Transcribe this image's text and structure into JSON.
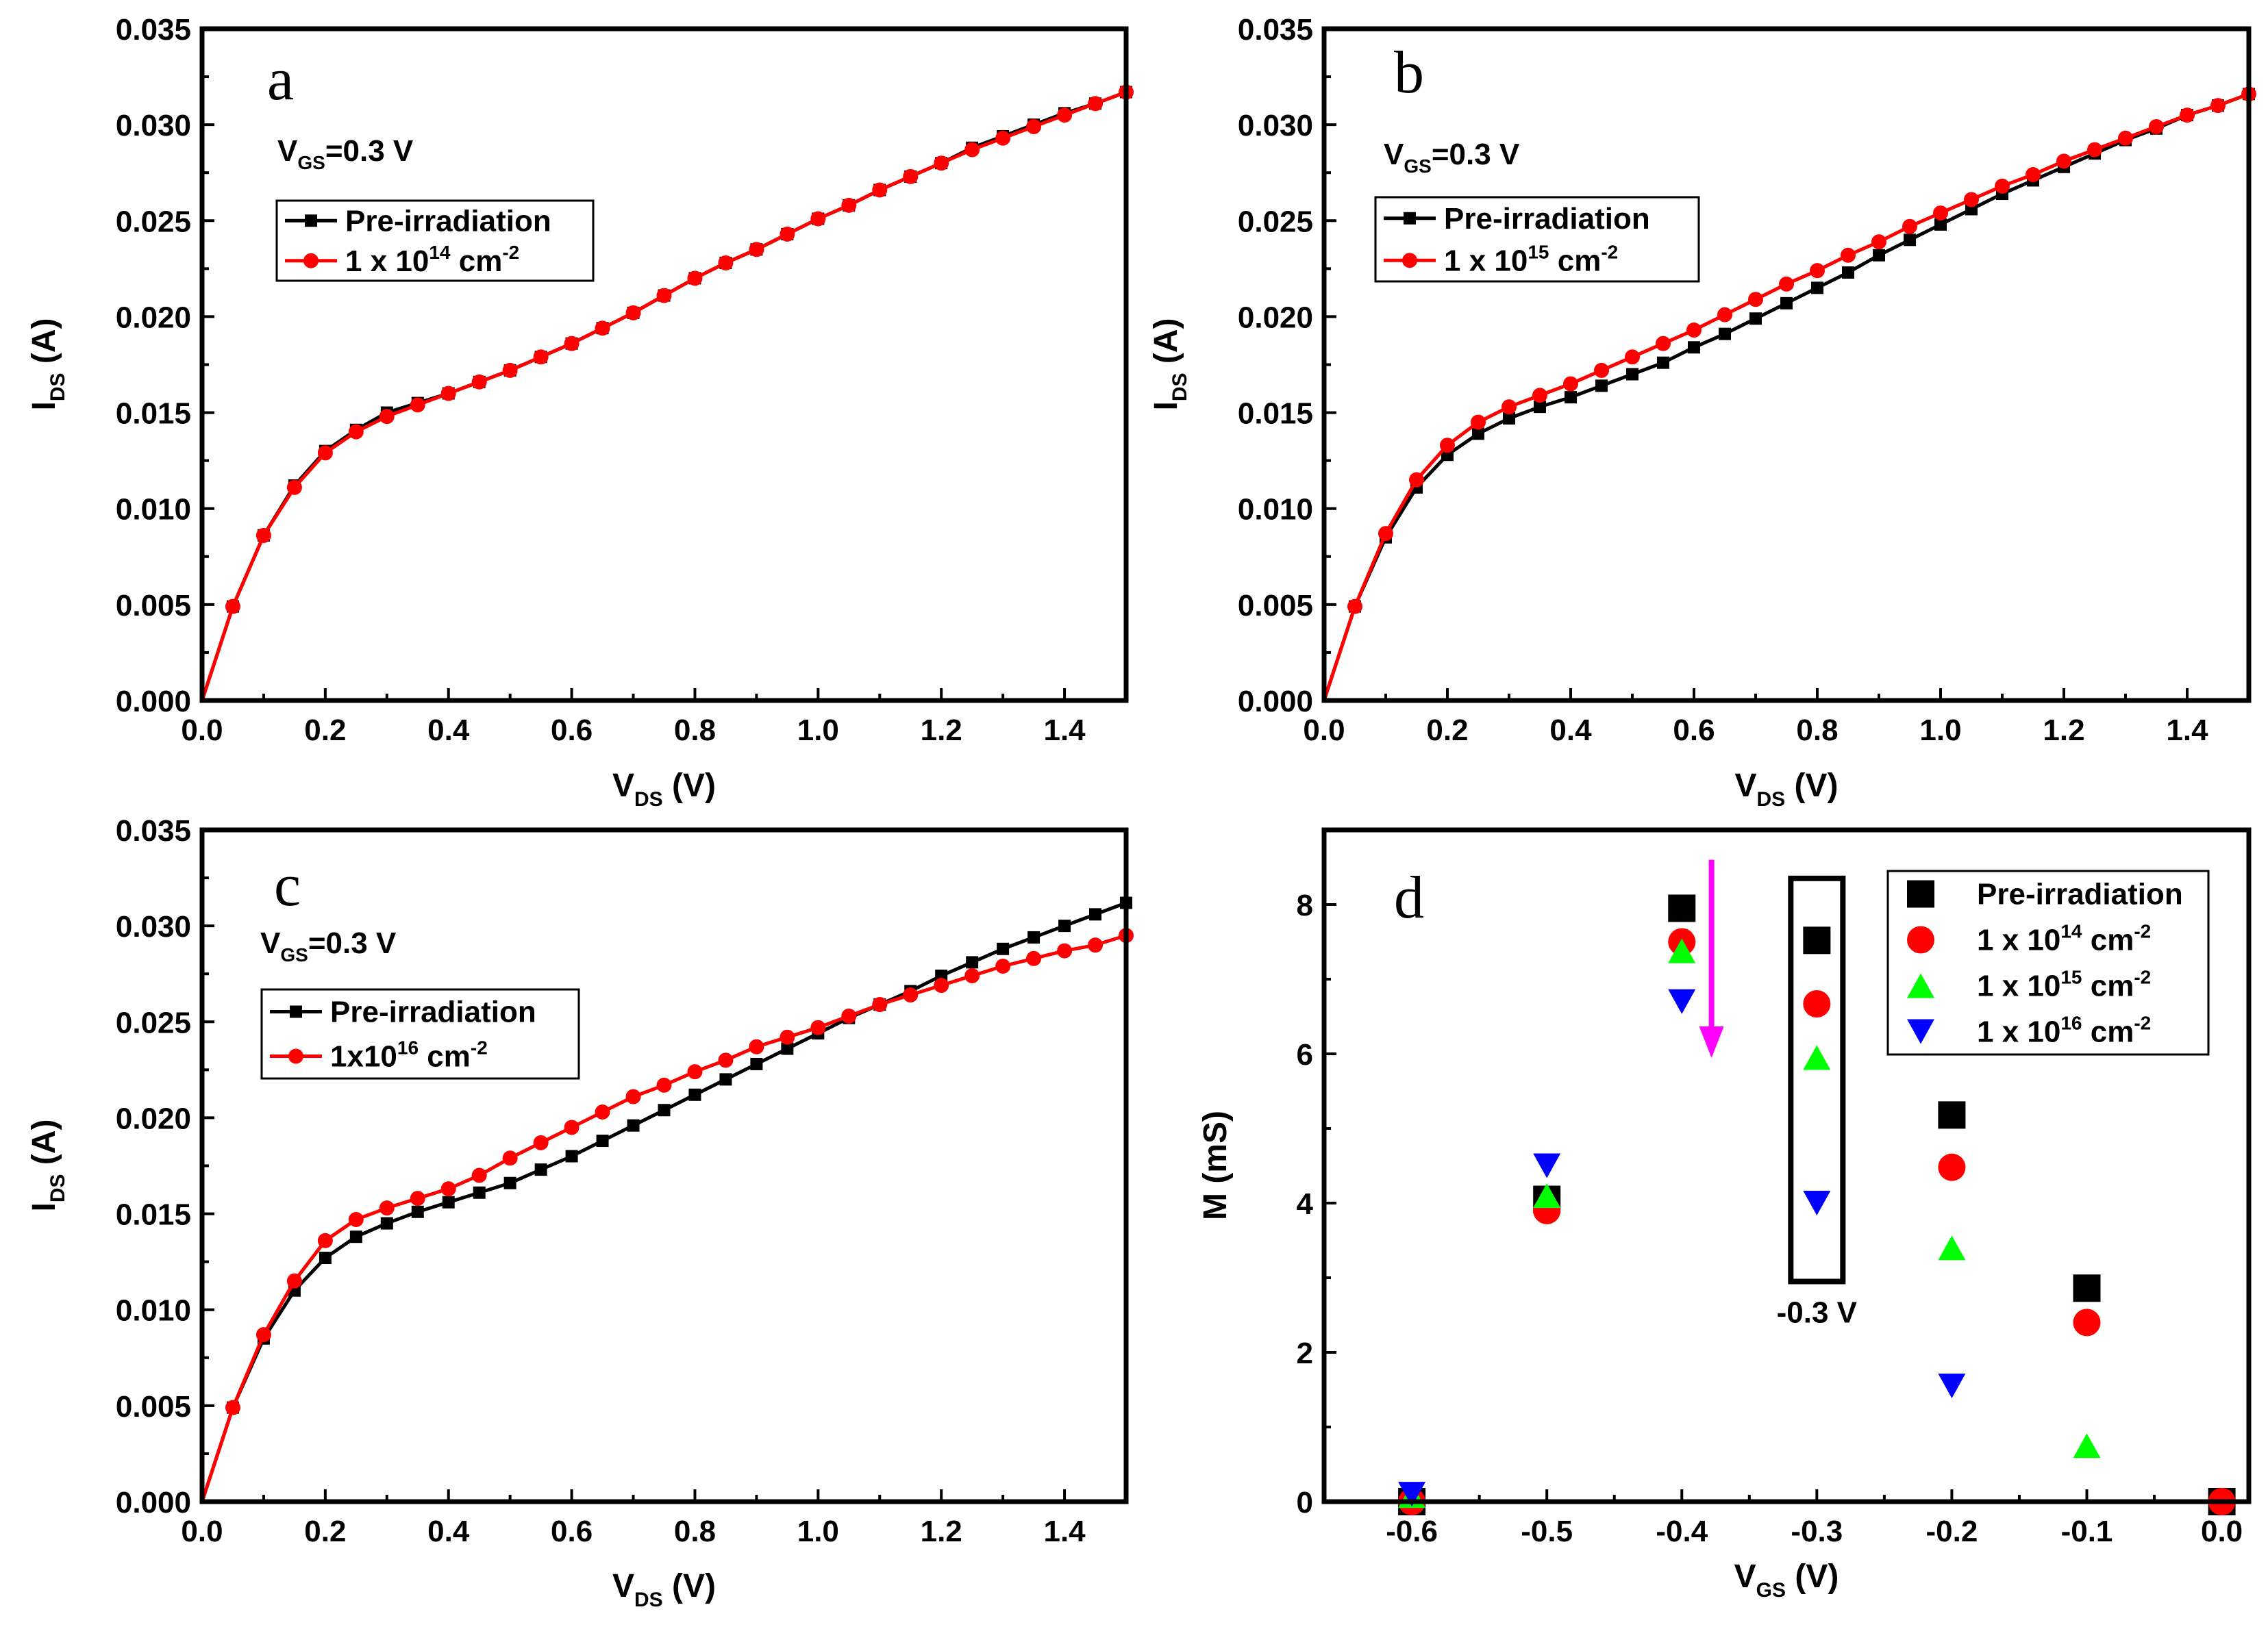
{
  "chart_data": [
    {
      "panel": "a",
      "type": "line",
      "annotation": {
        "main": "V",
        "sub": "GS",
        "rest": "=0.3 V"
      },
      "xlabel": {
        "main": "V",
        "sub": "DS",
        "rest": " (V)"
      },
      "ylabel": {
        "main": "I",
        "sub": "DS",
        "rest": " (A)"
      },
      "xlim": [
        0,
        1.5
      ],
      "ylim": [
        0,
        0.035
      ],
      "xticks": [
        "0.0",
        "0.2",
        "0.4",
        "0.6",
        "0.8",
        "1.0",
        "1.2",
        "1.4"
      ],
      "xtick_values": [
        0,
        0.2,
        0.4,
        0.6,
        0.8,
        1.0,
        1.2,
        1.4
      ],
      "yticks": [
        "0.000",
        "0.005",
        "0.010",
        "0.015",
        "0.020",
        "0.025",
        "0.030",
        "0.035"
      ],
      "ytick_values": [
        0,
        0.005,
        0.01,
        0.015,
        0.02,
        0.025,
        0.03,
        0.035
      ],
      "x": [
        0,
        0.05,
        0.1,
        0.15,
        0.2,
        0.25,
        0.3,
        0.35,
        0.4,
        0.45,
        0.5,
        0.55,
        0.6,
        0.65,
        0.7,
        0.75,
        0.8,
        0.85,
        0.9,
        0.95,
        1.0,
        1.05,
        1.1,
        1.15,
        1.2,
        1.25,
        1.3,
        1.35,
        1.4,
        1.45,
        1.5
      ],
      "series": [
        {
          "name": "Pre-irradiation",
          "color": "#000000",
          "marker": "square",
          "values": [
            0,
            0.0049,
            0.0086,
            0.0112,
            0.013,
            0.0141,
            0.015,
            0.0155,
            0.016,
            0.0166,
            0.0172,
            0.0179,
            0.0186,
            0.0194,
            0.0202,
            0.0211,
            0.022,
            0.0228,
            0.0235,
            0.0243,
            0.0251,
            0.0258,
            0.0266,
            0.0273,
            0.028,
            0.0288,
            0.0294,
            0.03,
            0.0306,
            0.0311,
            0.0317
          ]
        },
        {
          "name": "1 x 10",
          "sup": "14",
          "unit": " cm",
          "unit_sup": "-2",
          "color": "#ff0000",
          "marker": "circle",
          "values": [
            0,
            0.0049,
            0.0086,
            0.0111,
            0.0129,
            0.014,
            0.0148,
            0.0154,
            0.016,
            0.0166,
            0.0172,
            0.0179,
            0.0186,
            0.0194,
            0.0202,
            0.0211,
            0.022,
            0.0228,
            0.0235,
            0.0243,
            0.0251,
            0.0258,
            0.0266,
            0.0273,
            0.028,
            0.0287,
            0.0293,
            0.0299,
            0.0305,
            0.0311,
            0.0317
          ]
        }
      ]
    },
    {
      "panel": "b",
      "type": "line",
      "annotation": {
        "main": "V",
        "sub": "GS",
        "rest": "=0.3 V"
      },
      "xlabel": {
        "main": "V",
        "sub": "DS",
        "rest": " (V)"
      },
      "ylabel": {
        "main": "I",
        "sub": "DS",
        "rest": " (A)"
      },
      "xlim": [
        0,
        1.5
      ],
      "ylim": [
        0,
        0.035
      ],
      "xticks": [
        "0.0",
        "0.2",
        "0.4",
        "0.6",
        "0.8",
        "1.0",
        "1.2",
        "1.4"
      ],
      "xtick_values": [
        0,
        0.2,
        0.4,
        0.6,
        0.8,
        1.0,
        1.2,
        1.4
      ],
      "yticks": [
        "0.000",
        "0.005",
        "0.010",
        "0.015",
        "0.020",
        "0.025",
        "0.030",
        "0.035"
      ],
      "ytick_values": [
        0,
        0.005,
        0.01,
        0.015,
        0.02,
        0.025,
        0.03,
        0.035
      ],
      "x": [
        0,
        0.05,
        0.1,
        0.15,
        0.2,
        0.25,
        0.3,
        0.35,
        0.4,
        0.45,
        0.5,
        0.55,
        0.6,
        0.65,
        0.7,
        0.75,
        0.8,
        0.85,
        0.9,
        0.95,
        1.0,
        1.05,
        1.1,
        1.15,
        1.2,
        1.25,
        1.3,
        1.35,
        1.4,
        1.45,
        1.5
      ],
      "series": [
        {
          "name": "Pre-irradiation",
          "color": "#000000",
          "marker": "square",
          "values": [
            0,
            0.0049,
            0.0085,
            0.0111,
            0.0128,
            0.0139,
            0.0147,
            0.0153,
            0.0158,
            0.0164,
            0.017,
            0.0176,
            0.0184,
            0.0191,
            0.0199,
            0.0207,
            0.0215,
            0.0223,
            0.0232,
            0.024,
            0.0248,
            0.0256,
            0.0264,
            0.0271,
            0.0278,
            0.0285,
            0.0292,
            0.0298,
            0.0305,
            0.031,
            0.0316
          ]
        },
        {
          "name": "1 x 10",
          "sup": "15",
          "unit": " cm",
          "unit_sup": "-2",
          "color": "#ff0000",
          "marker": "circle",
          "values": [
            0,
            0.0049,
            0.0087,
            0.0115,
            0.0133,
            0.0145,
            0.0153,
            0.0159,
            0.0165,
            0.0172,
            0.0179,
            0.0186,
            0.0193,
            0.0201,
            0.0209,
            0.0217,
            0.0224,
            0.0232,
            0.0239,
            0.0247,
            0.0254,
            0.0261,
            0.0268,
            0.0274,
            0.0281,
            0.0287,
            0.0293,
            0.0299,
            0.0305,
            0.031,
            0.0316
          ]
        }
      ]
    },
    {
      "panel": "c",
      "type": "line",
      "annotation": {
        "main": "V",
        "sub": "GS",
        "rest": "=0.3 V"
      },
      "xlabel": {
        "main": "V",
        "sub": "DS",
        "rest": " (V)"
      },
      "ylabel": {
        "main": "I",
        "sub": "DS",
        "rest": " (A)"
      },
      "xlim": [
        0,
        1.5
      ],
      "ylim": [
        0,
        0.035
      ],
      "xticks": [
        "0.0",
        "0.2",
        "0.4",
        "0.6",
        "0.8",
        "1.0",
        "1.2",
        "1.4"
      ],
      "xtick_values": [
        0,
        0.2,
        0.4,
        0.6,
        0.8,
        1.0,
        1.2,
        1.4
      ],
      "yticks": [
        "0.000",
        "0.005",
        "0.010",
        "0.015",
        "0.020",
        "0.025",
        "0.030",
        "0.035"
      ],
      "ytick_values": [
        0,
        0.005,
        0.01,
        0.015,
        0.02,
        0.025,
        0.03,
        0.035
      ],
      "x": [
        0,
        0.05,
        0.1,
        0.15,
        0.2,
        0.25,
        0.3,
        0.35,
        0.4,
        0.45,
        0.5,
        0.55,
        0.6,
        0.65,
        0.7,
        0.75,
        0.8,
        0.85,
        0.9,
        0.95,
        1.0,
        1.05,
        1.1,
        1.15,
        1.2,
        1.25,
        1.3,
        1.35,
        1.4,
        1.45,
        1.5
      ],
      "series": [
        {
          "name": "Pre-irradiation",
          "color": "#000000",
          "marker": "square",
          "values": [
            0,
            0.0049,
            0.0085,
            0.011,
            0.0127,
            0.0138,
            0.0145,
            0.0151,
            0.0156,
            0.0161,
            0.0166,
            0.0173,
            0.018,
            0.0188,
            0.0196,
            0.0204,
            0.0212,
            0.022,
            0.0228,
            0.0236,
            0.0244,
            0.0252,
            0.0259,
            0.0266,
            0.0274,
            0.0281,
            0.0288,
            0.0294,
            0.03,
            0.0306,
            0.0312
          ]
        },
        {
          "name": "1x10",
          "sup": "16",
          "unit": " cm",
          "unit_sup": "-2",
          "color": "#ff0000",
          "marker": "circle",
          "values": [
            0,
            0.0049,
            0.0087,
            0.0115,
            0.0136,
            0.0147,
            0.0153,
            0.0158,
            0.0163,
            0.017,
            0.0179,
            0.0187,
            0.0195,
            0.0203,
            0.0211,
            0.0217,
            0.0224,
            0.023,
            0.0237,
            0.0242,
            0.0247,
            0.0253,
            0.0259,
            0.0264,
            0.0269,
            0.0274,
            0.0279,
            0.0283,
            0.0287,
            0.029,
            0.0295
          ]
        }
      ]
    },
    {
      "panel": "d",
      "type": "scatter",
      "xlabel": {
        "main": "V",
        "sub": "GS",
        "rest": " (V)"
      },
      "ylabel": {
        "main": "M (mS)",
        "sub": "",
        "rest": ""
      },
      "xlim": [
        -0.665,
        0.02
      ],
      "ylim": [
        0,
        9.0
      ],
      "xticks": [
        "-0.6",
        "-0.5",
        "-0.4",
        "-0.3",
        "-0.2",
        "-0.1",
        "0.0"
      ],
      "xtick_values": [
        -0.6,
        -0.5,
        -0.4,
        -0.3,
        -0.2,
        -0.1,
        0.0
      ],
      "yticks": [
        "0",
        "2",
        "4",
        "6",
        "8"
      ],
      "ytick_values": [
        0,
        2,
        4,
        6,
        8
      ],
      "x": [
        -0.6,
        -0.5,
        -0.4,
        -0.3,
        -0.2,
        -0.1,
        0.0
      ],
      "highlight_label": "-0.3 V",
      "highlight_x": -0.3,
      "highlight_range": [
        3.5,
        7.8
      ],
      "arrow": {
        "x": -0.378,
        "from": 8.6,
        "to": 6.0,
        "color": "#ff00ff"
      },
      "series": [
        {
          "name": "Pre-irradiation",
          "color": "#000000",
          "marker": "square",
          "values": [
            0.0,
            4.05,
            7.95,
            7.52,
            5.18,
            2.86,
            0.0
          ]
        },
        {
          "name": "1 x 10",
          "sup": "14",
          "unit": " cm",
          "unit_sup": "-2",
          "color": "#ff0000",
          "marker": "circle",
          "values": [
            0.0,
            3.9,
            7.5,
            6.67,
            4.48,
            2.4,
            0.0
          ]
        },
        {
          "name": "1 x 10",
          "sup": "15",
          "unit": " cm",
          "unit_sup": "-2",
          "color": "#00ff00",
          "marker": "triangle-up",
          "values": [
            0.08,
            4.1,
            7.38,
            5.95,
            3.4,
            0.75,
            null
          ]
        },
        {
          "name": "1 x 10",
          "sup": "16",
          "unit": " cm",
          "unit_sup": "-2",
          "color": "#0000ff",
          "marker": "triangle-down",
          "values": [
            0.1,
            4.5,
            6.7,
            4.0,
            1.55,
            null,
            null
          ]
        }
      ]
    }
  ]
}
